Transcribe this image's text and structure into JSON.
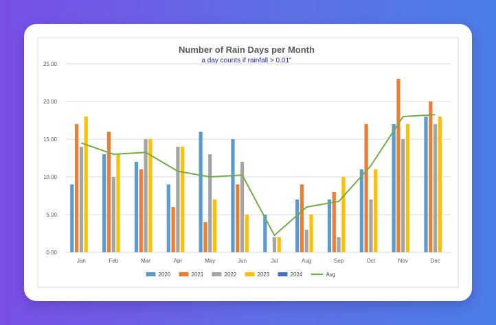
{
  "chart_data": {
    "type": "bar",
    "title": "Number of Rain Days per Month",
    "subtitle": "a day counts if rainfall > 0.01\"",
    "xlabel": "",
    "ylabel": "",
    "ylim": [
      0,
      25
    ],
    "yticks": [
      "0.00",
      "5.00",
      "10.00",
      "15.00",
      "20.00",
      "25.00"
    ],
    "grid": true,
    "legend_position": "bottom",
    "categories": [
      "Jan",
      "Feb",
      "Mar",
      "Apr",
      "May",
      "Jun",
      "Jul",
      "Aug",
      "Sep",
      "Oct",
      "Nov",
      "Dec"
    ],
    "series": [
      {
        "name": "2020",
        "type": "bar",
        "color": "#5b9bd5",
        "values": [
          9,
          13,
          12,
          9,
          16,
          15,
          5,
          7,
          7,
          11,
          17,
          18
        ]
      },
      {
        "name": "2021",
        "type": "bar",
        "color": "#ed7d31",
        "values": [
          17,
          16,
          11,
          6,
          4,
          9,
          0,
          9,
          8,
          17,
          23,
          20
        ]
      },
      {
        "name": "2022",
        "type": "bar",
        "color": "#a5a5a5",
        "values": [
          14,
          10,
          15,
          14,
          13,
          12,
          2,
          3,
          2,
          7,
          15,
          17
        ]
      },
      {
        "name": "2023",
        "type": "bar",
        "color": "#ffc000",
        "values": [
          18,
          13,
          15,
          14,
          7,
          5,
          2,
          5,
          10,
          11,
          17,
          18
        ]
      },
      {
        "name": "2024",
        "type": "bar",
        "color": "#4472c4",
        "values": [
          null,
          null,
          null,
          null,
          null,
          null,
          null,
          null,
          null,
          null,
          null,
          null
        ]
      },
      {
        "name": "Avg",
        "type": "line",
        "color": "#70ad47",
        "values": [
          14.5,
          13,
          13.25,
          10.75,
          10,
          10.25,
          2.25,
          6,
          6.75,
          11.5,
          18,
          18.25
        ]
      }
    ]
  }
}
